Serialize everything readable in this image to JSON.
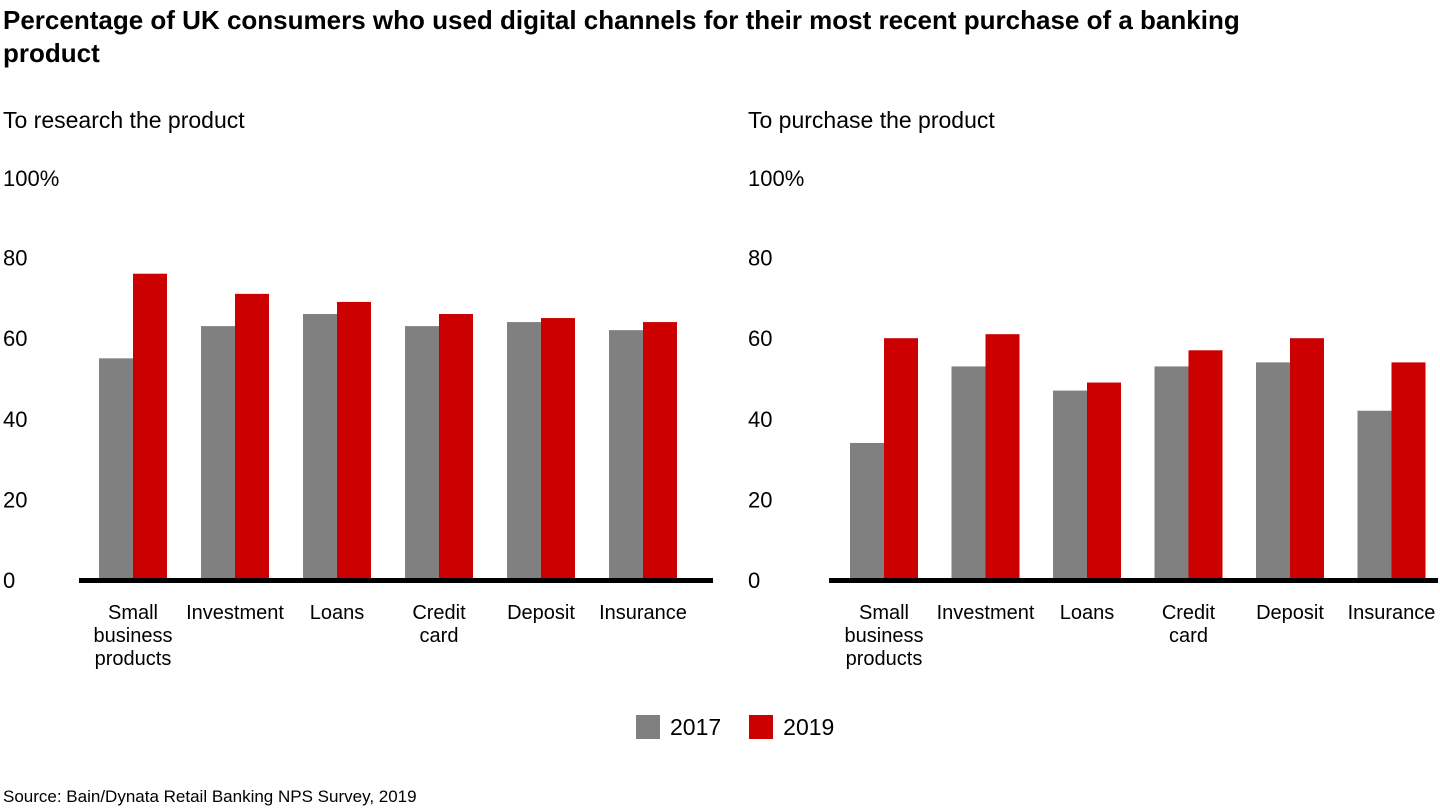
{
  "title": "Percentage of UK consumers who used digital channels for their most recent purchase of a banking product",
  "source": "Source: Bain/Dynata Retail Banking NPS Survey, 2019",
  "colors": {
    "2017": "#808080",
    "2019": "#cc0000",
    "axis": "#000000"
  },
  "legend": [
    {
      "label": "2017",
      "color": "#808080"
    },
    {
      "label": "2019",
      "color": "#cc0000"
    }
  ],
  "chart_data": [
    {
      "type": "bar",
      "title": "To research the product",
      "categories": [
        [
          "Small",
          "business",
          "products"
        ],
        [
          "Investment"
        ],
        [
          "Loans"
        ],
        [
          "Credit",
          "card"
        ],
        [
          "Deposit"
        ],
        [
          "Insurance"
        ]
      ],
      "series": [
        {
          "name": "2017",
          "values": [
            55,
            63,
            66,
            63,
            64,
            62
          ]
        },
        {
          "name": "2019",
          "values": [
            76,
            71,
            69,
            66,
            65,
            64
          ]
        }
      ],
      "yticks": [
        "0",
        "20",
        "40",
        "60",
        "80",
        "100%"
      ],
      "ylim": [
        0,
        100
      ],
      "grid": false,
      "legend_position": "bottom-center"
    },
    {
      "type": "bar",
      "title": "To purchase the product",
      "categories": [
        [
          "Small",
          "business",
          "products"
        ],
        [
          "Investment"
        ],
        [
          "Loans"
        ],
        [
          "Credit",
          "card"
        ],
        [
          "Deposit"
        ],
        [
          "Insurance"
        ]
      ],
      "series": [
        {
          "name": "2017",
          "values": [
            34,
            53,
            47,
            53,
            54,
            42
          ]
        },
        {
          "name": "2019",
          "values": [
            60,
            61,
            49,
            57,
            60,
            54
          ]
        }
      ],
      "yticks": [
        "0",
        "20",
        "40",
        "60",
        "80",
        "100%"
      ],
      "ylim": [
        0,
        100
      ],
      "grid": false,
      "legend_position": "bottom-center"
    }
  ]
}
